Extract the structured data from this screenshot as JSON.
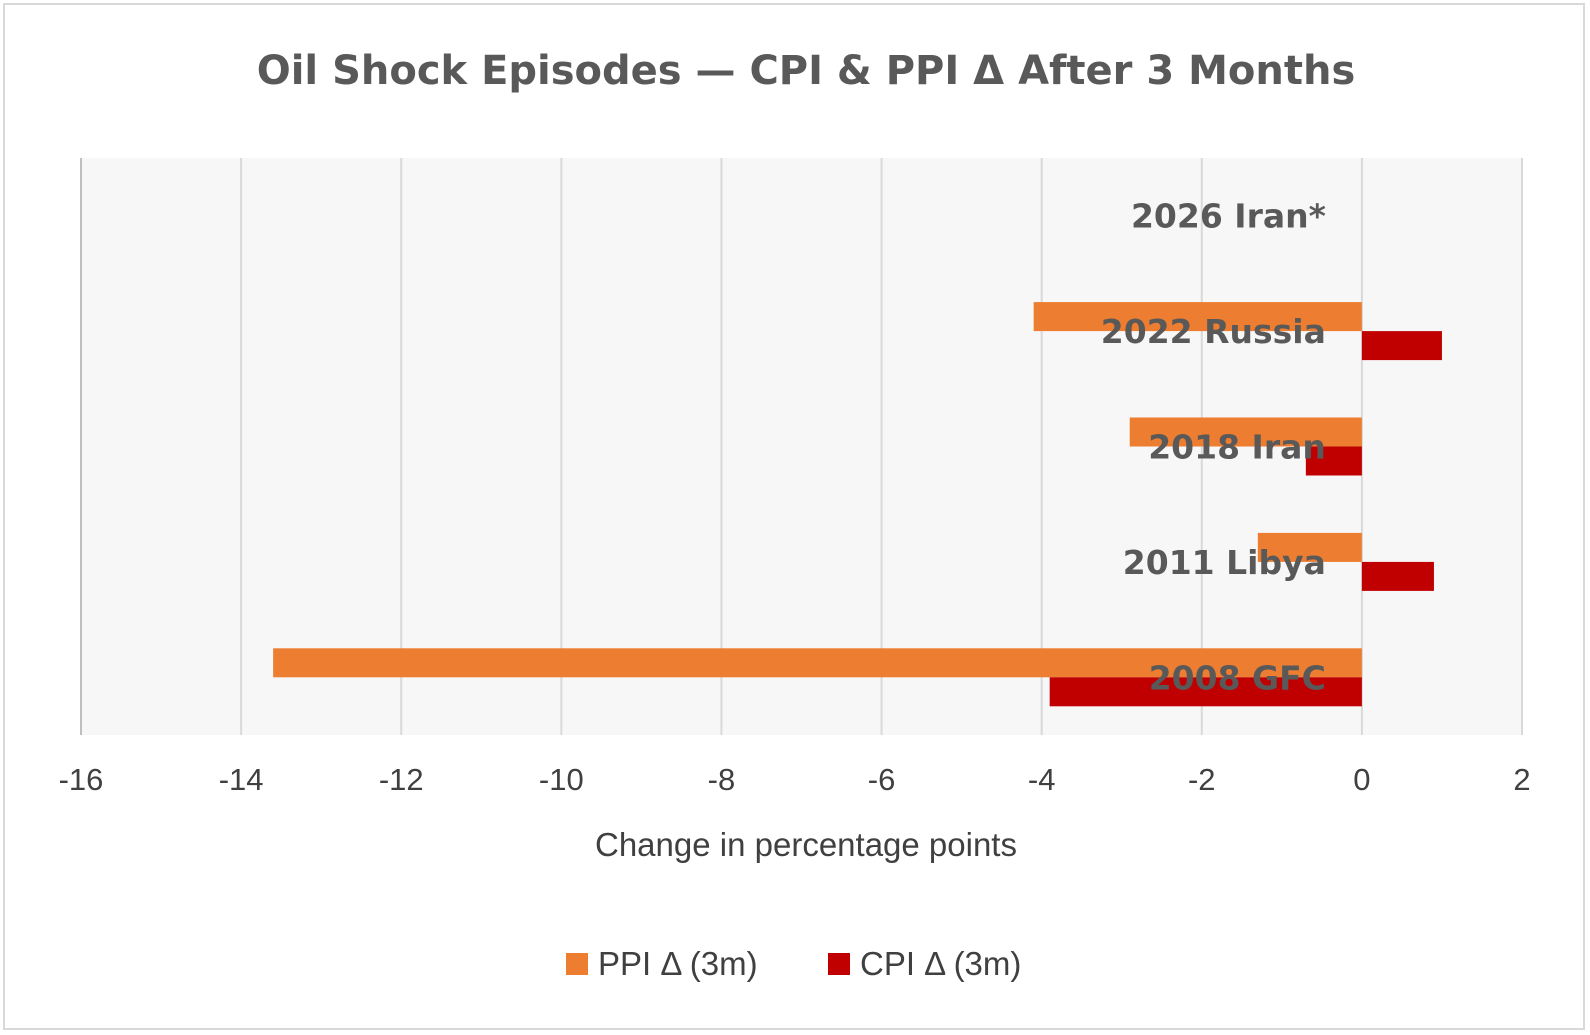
{
  "chart_data": {
    "type": "bar",
    "orientation": "horizontal",
    "title": "Oil Shock Episodes — CPI & PPI Δ After 3 Months",
    "xlabel": "Change in percentage points",
    "ylabel": "",
    "xlim": [
      -16,
      2
    ],
    "xticks": [
      -16,
      -14,
      -12,
      -10,
      -8,
      -6,
      -4,
      -2,
      0,
      2
    ],
    "grid": true,
    "legend_position": "bottom",
    "categories": [
      "2026 Iran*",
      "2022 Russia",
      "2018 Iran",
      "2011 Libya",
      "2008 GFC"
    ],
    "series": [
      {
        "name": "PPI Δ (3m)",
        "color": "#ED7D31",
        "values": [
          null,
          -4.1,
          -2.9,
          -1.3,
          -13.6
        ]
      },
      {
        "name": "CPI Δ (3m)",
        "color": "#C00000",
        "values": [
          null,
          1.0,
          -0.7,
          0.9,
          -3.9
        ]
      }
    ]
  },
  "colors": {
    "plot_background": "#F7F7F7",
    "gridline": "#D9D9D9",
    "axis_line": "#BFBFBF"
  }
}
